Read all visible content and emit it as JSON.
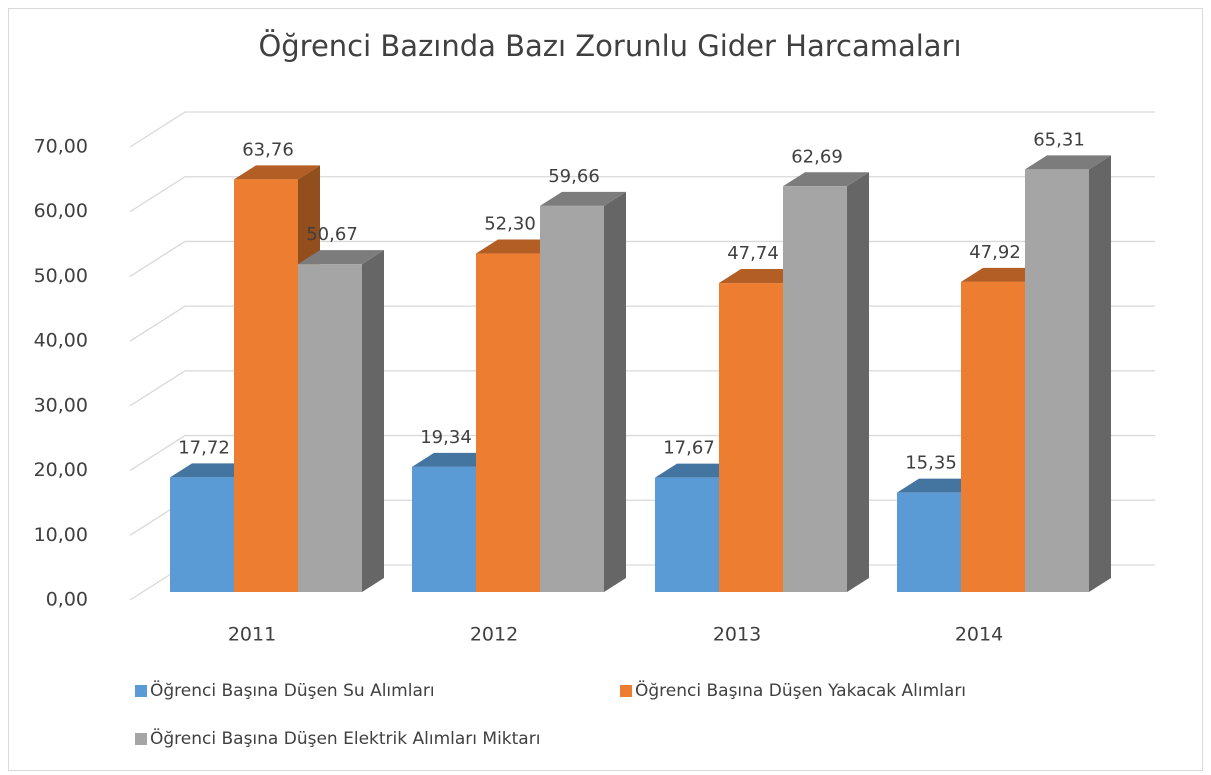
{
  "chart_data": {
    "type": "bar3d",
    "title": "Öğrenci Bazında Bazı Zorunlu Gider Harcamaları",
    "categories": [
      "2011",
      "2012",
      "2013",
      "2014"
    ],
    "series": [
      {
        "name": "Öğrenci Başına Düşen Su Alımları",
        "color": "#5b9bd5",
        "values": [
          17.72,
          19.34,
          17.67,
          15.35
        ],
        "value_labels": [
          "17,72",
          "19,34",
          "17,67",
          "15,35"
        ]
      },
      {
        "name": "Öğrenci Başına Düşen Yakacak Alımları",
        "color": "#ed7d31",
        "values": [
          63.76,
          52.3,
          47.74,
          47.92
        ],
        "value_labels": [
          "63,76",
          "52,30",
          "47,74",
          "47,92"
        ]
      },
      {
        "name": "Öğrenci Başına Düşen Elektrik Alımları Miktarı",
        "color": "#a5a5a5",
        "values": [
          50.67,
          59.66,
          62.69,
          65.31
        ],
        "value_labels": [
          "50,67",
          "59,66",
          "62,69",
          "65,31"
        ]
      }
    ],
    "ylim": [
      0,
      70
    ],
    "yticks": [
      {
        "value": 0,
        "label": "0,00"
      },
      {
        "value": 10,
        "label": "10,00"
      },
      {
        "value": 20,
        "label": "20,00"
      },
      {
        "value": 30,
        "label": "30,00"
      },
      {
        "value": 40,
        "label": "40,00"
      },
      {
        "value": 50,
        "label": "50,00"
      },
      {
        "value": 60,
        "label": "60,00"
      },
      {
        "value": 70,
        "label": "70,00"
      }
    ],
    "grid": true,
    "legend": "bottom"
  }
}
